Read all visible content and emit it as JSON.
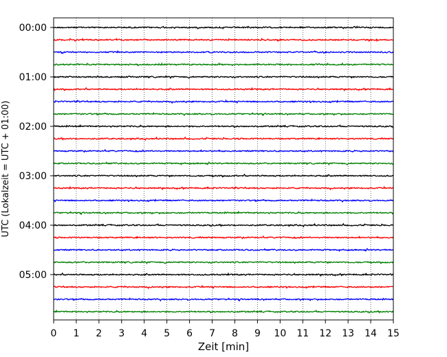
{
  "chart_data": {
    "type": "line",
    "title": "",
    "xlabel": "Zeit  [min]",
    "ylabel": "UTC (Lokalzeit = UTC + 01:00)",
    "xlim": [
      0,
      15
    ],
    "x_ticks": [
      "0",
      "1",
      "2",
      "3",
      "4",
      "5",
      "6",
      "7",
      "8",
      "9",
      "10",
      "11",
      "12",
      "13",
      "14",
      "15"
    ],
    "y_ticks": [
      "00:00",
      "01:00",
      "02:00",
      "03:00",
      "04:00",
      "05:00"
    ],
    "grid": "vertical dotted lines at each minute",
    "trace_interval_minutes": 15,
    "trace_start_times": [
      "00:00",
      "00:15",
      "00:30",
      "00:45",
      "01:00",
      "01:15",
      "01:30",
      "01:45",
      "02:00",
      "02:15",
      "02:30",
      "02:45",
      "03:00",
      "03:15",
      "03:30",
      "03:45",
      "04:00",
      "04:15",
      "04:30",
      "04:45",
      "05:00",
      "05:15",
      "05:30",
      "05:45"
    ],
    "series_colors": [
      "#000000",
      "#ff0000",
      "#0000ff",
      "#008000"
    ]
  }
}
